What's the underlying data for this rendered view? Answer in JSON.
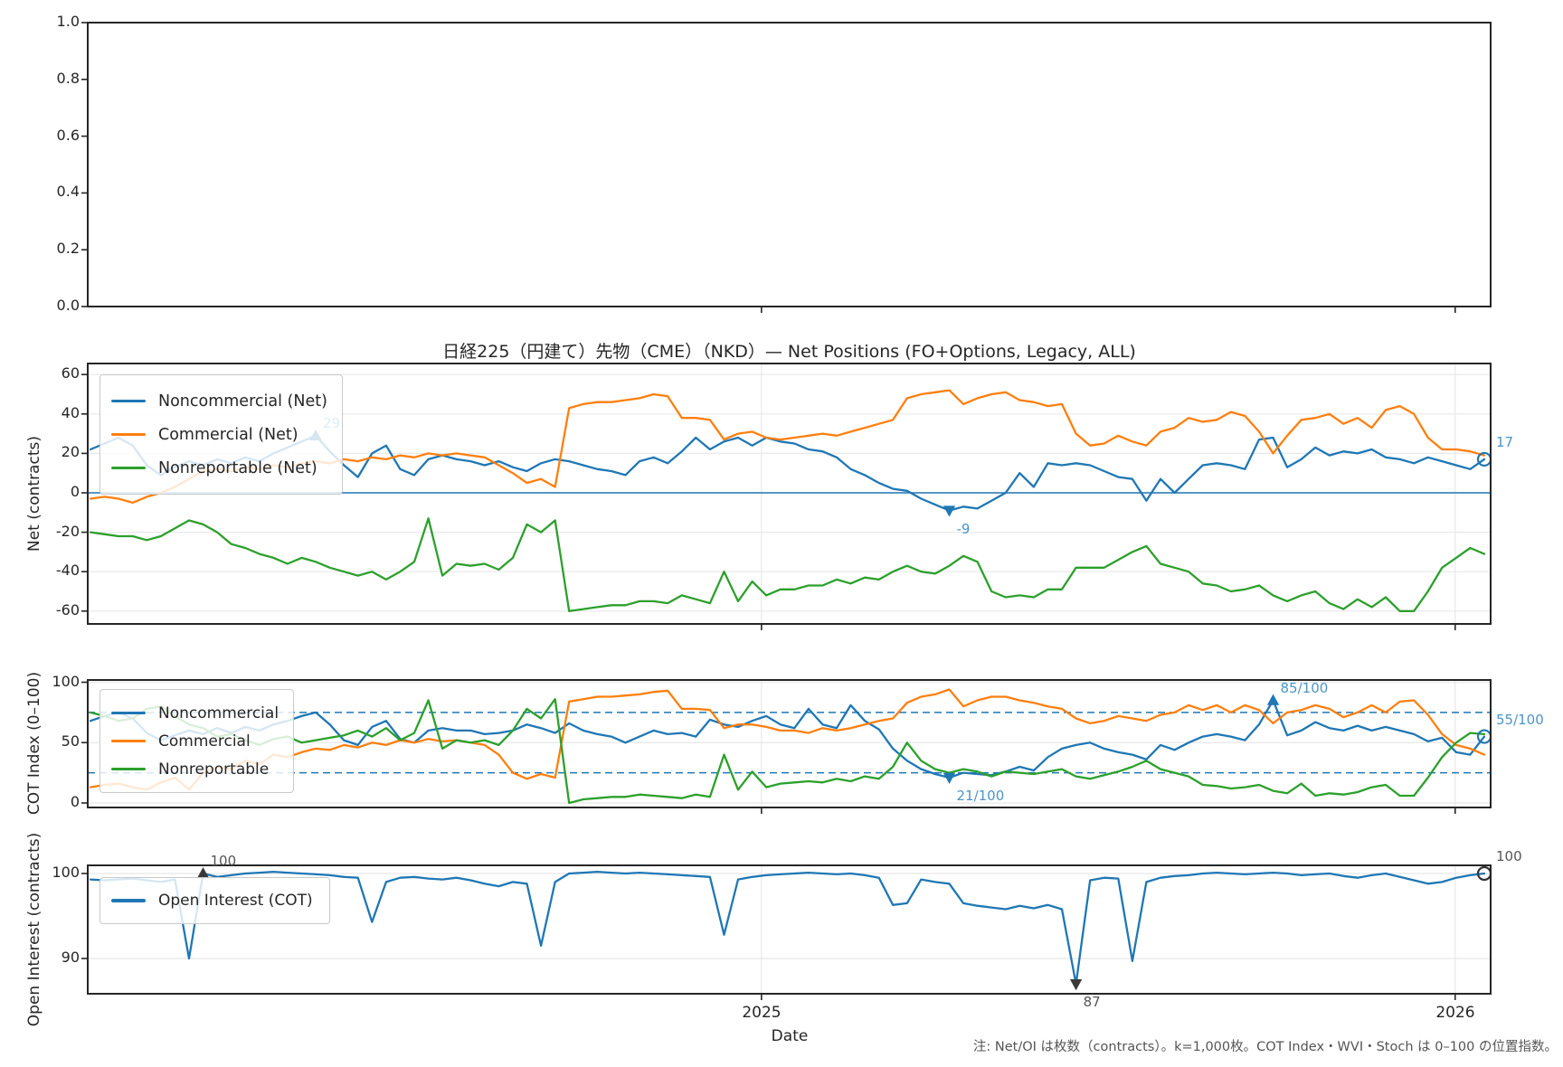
{
  "title": "日経225（円建て）先物（CME）（NKD）— Net Positions (FO+Options, Legacy, ALL)",
  "xlabel": "Date",
  "note": "注: Net/OI は枚数（contracts）。k=1,000枚。COT Index・WVI・Stoch は 0–100 の位置指数。",
  "colors": {
    "noncommercial": "#1f77b4",
    "commercial": "#ff7f0e",
    "nonreportable": "#2ca02c",
    "annotation_blue": "#4d94c7",
    "annotation_gray": "#555555",
    "spine": "#262626",
    "grid": "#e8e8e8",
    "dashed_guide": "#1f77b4"
  },
  "x_axis": {
    "labels": [
      "2025",
      "2026"
    ],
    "positions": [
      47.66,
      96.93
    ]
  },
  "panel2": {
    "ylabel": "Net (contracts)",
    "legend": [
      "Noncommercial (Net)",
      "Commercial (Net)",
      "Nonreportable (Net)"
    ]
  },
  "panel3": {
    "ylabel": "COT Index (0–100)",
    "legend": [
      "Noncommercial",
      "Commercial",
      "Nonreportable"
    ]
  },
  "panel4": {
    "ylabel": "Open Interest (contracts)",
    "legend": [
      "Open Interest (COT)"
    ]
  },
  "chart_data": [
    {
      "type": "line",
      "panel": "top-empty-axes",
      "title": "",
      "y_ticks": [
        "1.0",
        "0.8",
        "0.6",
        "0.4",
        "0.2",
        "0.0"
      ],
      "ylim": [
        0,
        1
      ],
      "grid": false,
      "series": [],
      "annotations": []
    },
    {
      "type": "line",
      "panel": "net-positions",
      "title": "日経225（円建て）先物（CME）（NKD）— Net Positions (FO+Options, Legacy, ALL)",
      "ylabel": "Net (contracts)",
      "y_ticks": [
        "60",
        "40",
        "20",
        "0",
        "-20",
        "-40",
        "-60"
      ],
      "ylim": [
        -66.5,
        65.6
      ],
      "x_range": "weekly, early 2024 → early 2026",
      "grid": true,
      "zero_line": true,
      "legend_position": "upper left",
      "annotation_color": "#4d94c7",
      "marker_color": "#1f77b4",
      "last_marker_color": "#1f77b4",
      "series": [
        {
          "name": "Noncommercial (Net)",
          "color": "#1f77b4",
          "values": [
            22,
            25,
            28,
            24,
            14,
            9,
            13,
            16,
            14,
            17,
            15,
            18,
            16,
            20,
            23,
            26,
            29,
            21,
            14,
            8,
            20,
            24,
            12,
            9,
            17,
            19,
            17,
            16,
            14,
            16,
            13,
            11,
            15,
            17,
            16,
            14,
            12,
            11,
            9,
            16,
            18,
            15,
            21,
            28,
            22,
            26,
            28,
            24,
            28,
            26,
            25,
            22,
            21,
            18,
            12,
            9,
            5,
            2,
            1,
            -3,
            -6,
            -9,
            -7,
            -8,
            -4,
            0,
            10,
            3,
            15,
            14,
            15,
            14,
            11,
            8,
            7,
            -4,
            7,
            0,
            7,
            14,
            15,
            14,
            12,
            27,
            28,
            13,
            17,
            23,
            19,
            21,
            20,
            22,
            18,
            17,
            15,
            18,
            16,
            14,
            12,
            17
          ]
        },
        {
          "name": "Commercial (Net)",
          "color": "#ff7f0e",
          "values": [
            -3,
            -2,
            -3,
            -5,
            -2,
            0,
            3,
            7,
            11,
            12,
            11,
            13,
            12,
            14,
            13,
            15,
            16,
            15,
            17,
            16,
            18,
            17,
            19,
            18,
            20,
            19,
            20,
            19,
            18,
            14,
            10,
            5,
            7,
            3,
            43,
            45,
            46,
            46,
            47,
            48,
            50,
            49,
            38,
            38,
            37,
            27,
            30,
            31,
            28,
            27,
            28,
            29,
            30,
            29,
            31,
            33,
            35,
            37,
            48,
            50,
            51,
            52,
            45,
            48,
            50,
            51,
            47,
            46,
            44,
            45,
            30,
            24,
            25,
            29,
            26,
            24,
            31,
            33,
            38,
            36,
            37,
            41,
            39,
            31,
            20,
            29,
            37,
            38,
            40,
            35,
            38,
            33,
            42,
            44,
            40,
            28,
            22,
            22,
            21,
            19
          ]
        },
        {
          "name": "Nonreportable (Net)",
          "color": "#2ca02c",
          "values": [
            -20,
            -21,
            -22,
            -22,
            -24,
            -22,
            -18,
            -14,
            -16,
            -20,
            -26,
            -28,
            -31,
            -33,
            -36,
            -33,
            -35,
            -38,
            -40,
            -42,
            -40,
            -44,
            -40,
            -35,
            -13,
            -42,
            -36,
            -37,
            -36,
            -39,
            -33,
            -16,
            -20,
            -14,
            -60,
            -59,
            -58,
            -57,
            -57,
            -55,
            -55,
            -56,
            -52,
            -54,
            -56,
            -40,
            -55,
            -45,
            -52,
            -49,
            -49,
            -47,
            -47,
            -44,
            -46,
            -43,
            -44,
            -40,
            -37,
            -40,
            -41,
            -37,
            -32,
            -35,
            -50,
            -53,
            -52,
            -53,
            -49,
            -49,
            -38,
            -38,
            -38,
            -34,
            -30,
            -27,
            -36,
            -38,
            -40,
            -46,
            -47,
            -50,
            -49,
            -47,
            -52,
            -55,
            -52,
            -50,
            -56,
            -59,
            -54,
            -58,
            -53,
            -60,
            -60,
            -50,
            -38,
            -33,
            -28,
            -31
          ]
        }
      ],
      "annotations": [
        {
          "label": "29",
          "series_index": 0,
          "index": 16,
          "kind": "max"
        },
        {
          "label": "-9",
          "series_index": 0,
          "index": 61,
          "kind": "min"
        },
        {
          "label": "17",
          "series_index": 0,
          "index": 99,
          "kind": "last"
        }
      ]
    },
    {
      "type": "line",
      "panel": "cot-index",
      "ylabel": "COT Index (0–100)",
      "y_ticks": [
        "100",
        "50",
        "0"
      ],
      "ylim": [
        -3.7,
        101.9
      ],
      "grid": true,
      "dashed_lines": [
        75,
        25
      ],
      "legend_position": "upper left",
      "annotation_color": "#4d94c7",
      "marker_color": "#1f77b4",
      "last_marker_color": "#1f77b4",
      "series": [
        {
          "name": "Noncommercial",
          "color": "#1f77b4",
          "values": [
            68,
            72,
            75,
            70,
            58,
            52,
            56,
            60,
            57,
            62,
            58,
            63,
            60,
            65,
            68,
            72,
            75,
            65,
            52,
            48,
            63,
            68,
            53,
            50,
            60,
            62,
            60,
            60,
            57,
            58,
            60,
            65,
            62,
            58,
            66,
            60,
            57,
            55,
            50,
            55,
            60,
            57,
            58,
            55,
            69,
            65,
            63,
            68,
            72,
            65,
            62,
            78,
            65,
            62,
            81,
            68,
            61,
            45,
            35,
            28,
            24,
            21,
            25,
            24,
            23,
            26,
            30,
            27,
            38,
            45,
            48,
            50,
            45,
            42,
            40,
            36,
            48,
            44,
            50,
            55,
            57,
            55,
            52,
            65,
            85,
            56,
            60,
            67,
            62,
            60,
            64,
            60,
            63,
            60,
            57,
            51,
            54,
            42,
            40,
            55
          ]
        },
        {
          "name": "Commercial",
          "color": "#ff7f0e",
          "values": [
            13,
            15,
            16,
            13,
            11,
            17,
            21,
            11,
            25,
            30,
            28,
            35,
            32,
            40,
            38,
            42,
            45,
            44,
            48,
            46,
            50,
            48,
            52,
            50,
            53,
            51,
            52,
            50,
            48,
            40,
            25,
            20,
            24,
            21,
            84,
            86,
            88,
            88,
            89,
            90,
            92,
            93,
            78,
            78,
            77,
            62,
            65,
            65,
            63,
            60,
            60,
            58,
            62,
            60,
            62,
            65,
            68,
            70,
            83,
            88,
            90,
            94,
            80,
            85,
            88,
            88,
            85,
            83,
            80,
            78,
            70,
            66,
            68,
            72,
            70,
            68,
            73,
            75,
            81,
            77,
            81,
            75,
            81,
            77,
            66,
            75,
            77,
            81,
            78,
            71,
            75,
            81,
            75,
            84,
            85,
            73,
            57,
            48,
            45,
            40
          ]
        },
        {
          "name": "Nonreportable",
          "color": "#2ca02c",
          "values": [
            75,
            72,
            68,
            70,
            78,
            80,
            72,
            65,
            62,
            55,
            57,
            52,
            48,
            53,
            55,
            50,
            52,
            54,
            56,
            60,
            55,
            62,
            52,
            58,
            85,
            45,
            52,
            50,
            52,
            48,
            60,
            78,
            70,
            86,
            0,
            3,
            4,
            5,
            5,
            7,
            6,
            5,
            4,
            7,
            5,
            40,
            11,
            26,
            13,
            16,
            17,
            18,
            17,
            20,
            18,
            22,
            20,
            30,
            50,
            35,
            28,
            25,
            28,
            26,
            22,
            26,
            25,
            24,
            26,
            28,
            22,
            20,
            23,
            26,
            30,
            35,
            28,
            25,
            22,
            15,
            14,
            12,
            13,
            15,
            10,
            8,
            16,
            6,
            8,
            7,
            9,
            13,
            15,
            6,
            6,
            21,
            38,
            50,
            58,
            57
          ]
        }
      ],
      "annotations": [
        {
          "label": "85/100",
          "series_index": 0,
          "index": 84,
          "kind": "max"
        },
        {
          "label": "21/100",
          "series_index": 0,
          "index": 61,
          "kind": "min"
        },
        {
          "label": "55/100",
          "series_index": 0,
          "index": 99,
          "kind": "last"
        }
      ]
    },
    {
      "type": "line",
      "panel": "open-interest",
      "ylabel": "Open Interest (contracts)",
      "y_ticks": [
        "100",
        "90"
      ],
      "ylim": [
        85.9,
        101.0
      ],
      "grid": true,
      "legend_position": "upper left",
      "annotation_color": "#555555",
      "marker_color": "#3a3a3a",
      "last_marker_color": "#333333",
      "series": [
        {
          "name": "Open Interest (COT)",
          "color": "#1f77b4",
          "values": [
            99.3,
            99.2,
            99.3,
            99.4,
            99.2,
            99.0,
            99.3,
            90.0,
            100.0,
            99.6,
            99.8,
            100.0,
            100.1,
            100.2,
            100.1,
            100.0,
            99.9,
            99.8,
            99.6,
            99.5,
            94.3,
            99.0,
            99.5,
            99.6,
            99.4,
            99.3,
            99.5,
            99.2,
            98.8,
            98.5,
            99.0,
            98.8,
            91.5,
            99.0,
            100.0,
            100.1,
            100.2,
            100.1,
            100.0,
            100.1,
            100.0,
            99.9,
            99.8,
            99.7,
            99.6,
            92.8,
            99.3,
            99.6,
            99.8,
            99.9,
            100.0,
            100.1,
            100.0,
            99.9,
            100.0,
            99.8,
            99.5,
            96.3,
            96.5,
            99.3,
            99.0,
            98.8,
            96.5,
            96.2,
            96.0,
            95.8,
            96.2,
            95.9,
            96.3,
            95.8,
            87.0,
            99.2,
            99.5,
            99.4,
            89.7,
            99.0,
            99.5,
            99.7,
            99.8,
            100.0,
            100.1,
            100.0,
            99.9,
            100.0,
            100.1,
            100.0,
            99.8,
            99.9,
            100.0,
            99.7,
            99.5,
            99.8,
            100.0,
            99.6,
            99.2,
            98.8,
            99.0,
            99.5,
            99.8,
            100.0
          ]
        }
      ],
      "annotations": [
        {
          "label": "100",
          "series_index": 0,
          "index": 8,
          "kind": "max"
        },
        {
          "label": "87",
          "series_index": 0,
          "index": 70,
          "kind": "min"
        },
        {
          "label": "100",
          "series_index": 0,
          "index": 99,
          "kind": "last"
        }
      ]
    }
  ]
}
